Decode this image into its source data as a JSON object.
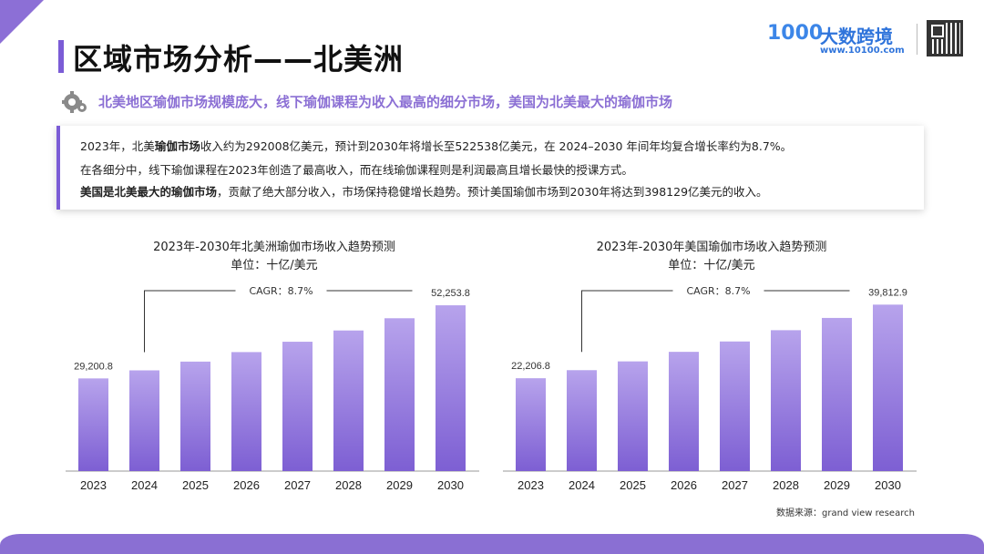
{
  "page": {
    "title": "区域市场分析——北美洲",
    "subtitle": "北美地区瑜伽市场规模庞大，线下瑜伽课程为收入最高的细分市场，美国为北美最大的瑜伽市场",
    "source": "数据来源：grand view research"
  },
  "logo": {
    "mark": "1000",
    "name": "大数跨境",
    "url": "www.10100.com"
  },
  "summary": {
    "line1_a": "2023年，北美",
    "line1_b": "瑜伽市场",
    "line1_c": "收入约为292008亿美元，预计到2030年将增长至522538亿美元，在 2024–2030 年间年均复合增长率约为8.7%。",
    "line2": "在各细分中，线下瑜伽课程在2023年创造了最高收入，而在线瑜伽课程则是利润最高且增长最快的授课方式。",
    "line3_a": "美国是北美最大的瑜伽市场",
    "line3_b": "，贡献了绝大部分收入，市场保持稳健增长趋势。预计美国瑜伽市场到2030年将达到398129亿美元的收入。"
  },
  "colors": {
    "accent": "#7b5cd6",
    "bar_top": "#b7a3ec",
    "bar_bottom": "#7d5fd3",
    "text": "#222222"
  },
  "chart_data": [
    {
      "type": "bar",
      "title": "2023年-2030年北美洲瑜伽市场收入趋势预测",
      "subtitle": "单位：十亿/美元",
      "categories": [
        "2023",
        "2024",
        "2025",
        "2026",
        "2027",
        "2028",
        "2029",
        "2030"
      ],
      "values": [
        29200.8,
        31742.3,
        34503.8,
        37505.6,
        40768.6,
        44315.5,
        48170.9,
        52253.8
      ],
      "data_labels": {
        "first": "29,200.8",
        "last": "52,253.8"
      },
      "annotation": "CAGR：8.7%",
      "ylim": [
        0,
        56000
      ]
    },
    {
      "type": "bar",
      "title": "2023年-2030年美国瑜伽市场收入趋势预测",
      "subtitle": "单位：十亿/美元",
      "categories": [
        "2023",
        "2024",
        "2025",
        "2026",
        "2027",
        "2028",
        "2029",
        "2030"
      ],
      "values": [
        22206.8,
        24138.8,
        26238.9,
        28521.7,
        31003.1,
        33700.4,
        36632.4,
        39812.9
      ],
      "data_labels": {
        "first": "22,206.8",
        "last": "39,812.9"
      },
      "annotation": "CAGR：8.7%",
      "ylim": [
        0,
        42500
      ]
    }
  ]
}
